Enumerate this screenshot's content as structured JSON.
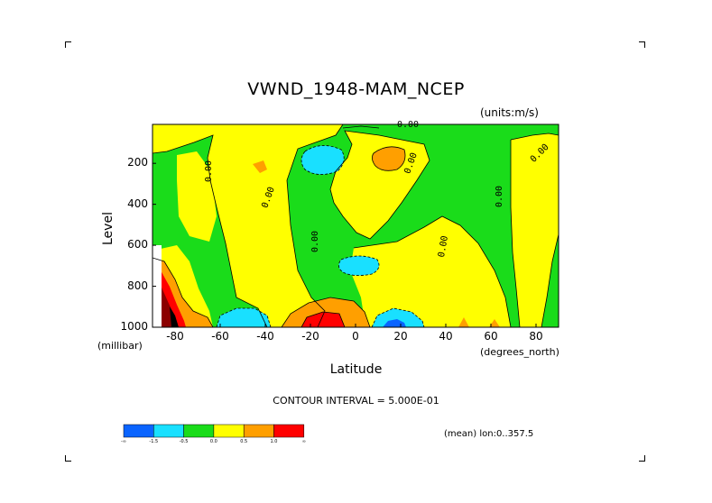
{
  "chart_data": {
    "type": "heatmap",
    "title": "VWND_1948-MAM_NCEP",
    "units": "(units:m/s)",
    "xlabel": "Latitude",
    "xlabel_unit": "(degrees_north)",
    "ylabel": "Level",
    "ylabel_unit": "(millibar)",
    "xlim": [
      -90,
      90
    ],
    "ylim": [
      1000,
      10
    ],
    "x_ticks": [
      "-80",
      "-60",
      "-40",
      "-20",
      "0",
      "20",
      "40",
      "60",
      "80"
    ],
    "y_ticks": [
      "200",
      "400",
      "600",
      "800",
      "1000"
    ],
    "contour_interval_text": "CONTOUR INTERVAL = 5.000E-01",
    "mean_text": "(mean) lon:0..357.5",
    "contour_labels": [
      "0.00",
      "0.00",
      "0.00",
      "0.00",
      "0.00",
      "0.00",
      "0.00",
      "0.00"
    ],
    "colorbar": {
      "colors": [
        "#0a64ff",
        "#19e0ff",
        "#1adc1a",
        "#ffff00",
        "#ff9f00",
        "#ff0000"
      ],
      "labels": [
        "-∞",
        "-1.5",
        "-0.5",
        "0.0",
        "0.5",
        "1.0",
        "∞"
      ]
    },
    "colors": {
      "green": "#1adc1a",
      "yellow": "#ffff00",
      "cyan": "#19e0ff",
      "blue": "#0a64ff",
      "orange": "#ff9f00",
      "red": "#ff0000",
      "darkred": "#8b0000",
      "black": "#000000"
    }
  }
}
